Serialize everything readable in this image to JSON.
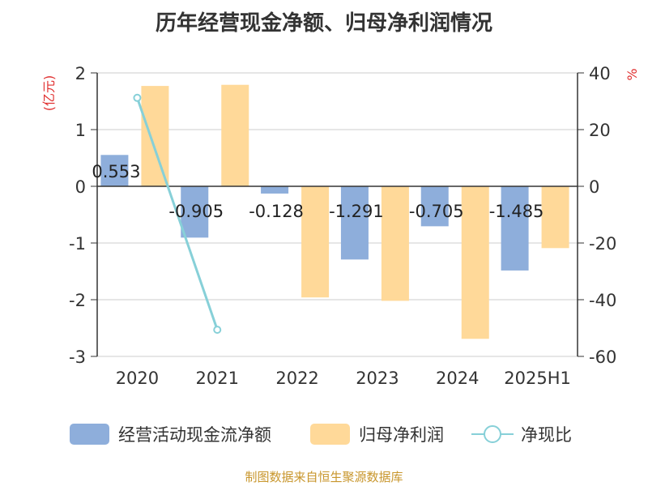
{
  "title": "历年经营现金净额、归母净利润情况",
  "source": "制图数据来自恒生聚源数据库",
  "chart_data": {
    "type": "bar",
    "categories": [
      "2020",
      "2021",
      "2022",
      "2023",
      "2024",
      "2025H1"
    ],
    "y_left_label": "(亿元)",
    "y_right_label": "%",
    "y_left_ticks": [
      "2",
      "1",
      "0",
      "-1",
      "-2",
      "-3"
    ],
    "y_right_ticks": [
      "40",
      "20",
      "0",
      "-20",
      "-40",
      "-60"
    ],
    "y_left_range": [
      -3,
      2
    ],
    "y_right_range": [
      -60,
      40
    ],
    "series": [
      {
        "name": "经营活动现金流净额",
        "type": "bar",
        "axis": "left",
        "color": "#8eaedb",
        "values": [
          0.553,
          -0.905,
          -0.128,
          -1.291,
          -0.705,
          -1.485
        ],
        "labels": [
          "0.553",
          "-0.905",
          "-0.128",
          "-1.291",
          "-0.705",
          "-1.485"
        ]
      },
      {
        "name": "归母净利润",
        "type": "bar",
        "axis": "left",
        "color": "#ffd999",
        "values": [
          1.77,
          1.79,
          -1.96,
          -2.02,
          -2.69,
          -1.09
        ]
      },
      {
        "name": "净现比",
        "type": "line",
        "axis": "right",
        "color": "#87d0d8",
        "values": [
          31.2,
          -50.6,
          null,
          null,
          null,
          null
        ]
      }
    ],
    "grid": true,
    "legend_position": "bottom"
  }
}
